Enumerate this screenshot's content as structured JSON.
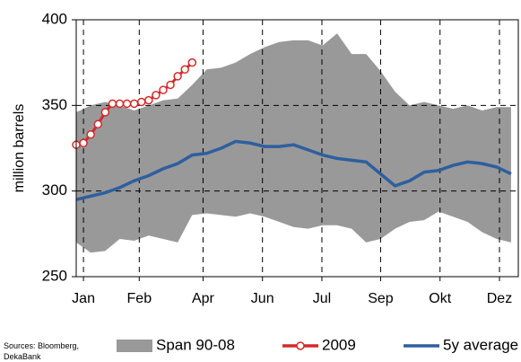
{
  "chart_data": {
    "type": "line",
    "y_label": "million barrels",
    "source": "Sources: Bloomberg, DekaBank",
    "xlim": [
      0,
      61
    ],
    "xticks": [
      {
        "value": 1,
        "label": "Jan"
      },
      {
        "value": 8.7,
        "label": "Feb"
      },
      {
        "value": 17.5,
        "label": "Apr"
      },
      {
        "value": 25.7,
        "label": "Jun"
      },
      {
        "value": 33.9,
        "label": "Jul"
      },
      {
        "value": 42,
        "label": "Sep"
      },
      {
        "value": 50.2,
        "label": "Okt"
      },
      {
        "value": 58.4,
        "label": "Dez"
      }
    ],
    "ylim": [
      250,
      400
    ],
    "yticks": [
      250,
      300,
      350,
      400
    ],
    "grid": true,
    "x": [
      0,
      2,
      4,
      6,
      8,
      10,
      12,
      14,
      16,
      18,
      20,
      22,
      24,
      26,
      28,
      30,
      32,
      34,
      36,
      38,
      40,
      42,
      44,
      46,
      48,
      50,
      52,
      54,
      56,
      58,
      60
    ],
    "series": [
      {
        "name": "Span 90-08",
        "kind": "range",
        "color": "#999999",
        "upper": [
          346,
          350,
          352,
          350,
          347,
          350,
          353,
          354,
          362,
          371,
          372,
          375,
          380,
          384,
          387,
          388,
          388,
          385,
          392,
          380,
          380,
          370,
          358,
          350,
          352,
          350,
          348,
          350,
          347,
          349,
          349
        ],
        "lower": [
          270,
          264,
          265,
          272,
          271,
          274,
          272,
          270,
          286,
          287,
          286,
          285,
          287,
          285,
          282,
          279,
          278,
          280,
          280,
          278,
          270,
          272,
          278,
          282,
          283,
          288,
          285,
          282,
          276,
          272,
          270
        ]
      },
      {
        "name": "2009",
        "kind": "marker-line",
        "color": "#d42a2a",
        "x": [
          0,
          1,
          2,
          3,
          4,
          5,
          6,
          7,
          8,
          9,
          10,
          11,
          12,
          13,
          14,
          15,
          16
        ],
        "values": [
          327,
          328,
          333,
          339,
          346,
          351,
          351,
          351,
          351,
          352,
          353,
          356,
          359,
          362,
          367,
          371,
          375
        ]
      },
      {
        "name": "5y average",
        "kind": "line",
        "color": "#2e5f9f",
        "values": [
          295,
          297,
          299,
          302,
          306,
          309,
          313,
          316,
          321,
          322,
          325,
          329,
          328,
          326,
          326,
          327,
          324,
          321,
          319,
          318,
          317,
          310,
          303,
          306,
          311,
          312,
          315,
          317,
          316,
          314,
          310
        ]
      }
    ]
  }
}
